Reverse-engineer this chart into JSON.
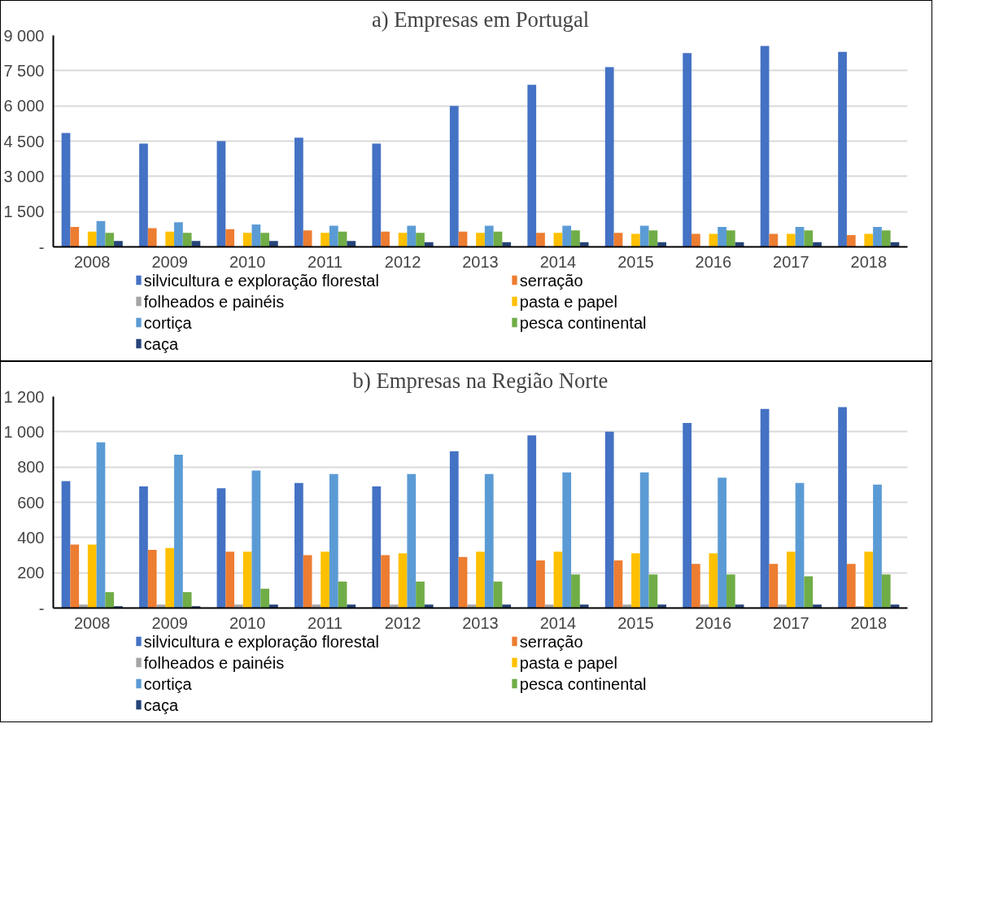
{
  "chart_data": [
    {
      "type": "bar",
      "title": "a) Empresas em Portugal",
      "categories": [
        "2008",
        "2009",
        "2010",
        "2011",
        "2012",
        "2013",
        "2014",
        "2015",
        "2016",
        "2017",
        "2018"
      ],
      "series": [
        {
          "name": "silvicultura e exploração florestal",
          "color": "#4472c4",
          "values": [
            4850,
            4400,
            4500,
            4650,
            4400,
            6000,
            6900,
            7650,
            8250,
            8550,
            8300
          ]
        },
        {
          "name": "serração",
          "color": "#ed7d31",
          "values": [
            850,
            800,
            750,
            700,
            650,
            650,
            600,
            600,
            550,
            550,
            500
          ]
        },
        {
          "name": " folheados e painéis",
          "color": "#a5a5a5",
          "values": [
            0,
            0,
            0,
            0,
            0,
            0,
            0,
            0,
            0,
            0,
            0
          ]
        },
        {
          "name": "pasta e papel",
          "color": "#ffc000",
          "values": [
            650,
            650,
            600,
            600,
            600,
            600,
            600,
            550,
            550,
            550,
            550
          ]
        },
        {
          "name": "cortiça",
          "color": "#5b9bd5",
          "values": [
            1100,
            1050,
            950,
            900,
            900,
            900,
            900,
            900,
            850,
            850,
            850
          ]
        },
        {
          "name": "pesca continental",
          "color": "#70ad47",
          "values": [
            600,
            600,
            600,
            650,
            600,
            650,
            700,
            700,
            700,
            700,
            700
          ]
        },
        {
          "name": "caça",
          "color": "#264478",
          "values": [
            250,
            250,
            250,
            250,
            200,
            200,
            200,
            200,
            200,
            200,
            200
          ]
        }
      ],
      "ylim": [
        0,
        9000
      ],
      "yticks": [
        {
          "value": 0,
          "label": "-"
        },
        {
          "value": 1500,
          "label": "1 500"
        },
        {
          "value": 3000,
          "label": "3 000"
        },
        {
          "value": 4500,
          "label": "4 500"
        },
        {
          "value": 6000,
          "label": "6 000"
        },
        {
          "value": 7500,
          "label": "7 500"
        },
        {
          "value": 9000,
          "label": "9 000"
        }
      ],
      "grid": "y",
      "legend": "bottom"
    },
    {
      "type": "bar",
      "title": "b) Empresas na Região Norte",
      "categories": [
        "2008",
        "2009",
        "2010",
        "2011",
        "2012",
        "2013",
        "2014",
        "2015",
        "2016",
        "2017",
        "2018"
      ],
      "series": [
        {
          "name": "silvicultura e exploração florestal",
          "color": "#4472c4",
          "values": [
            720,
            690,
            680,
            710,
            690,
            890,
            980,
            1000,
            1050,
            1130,
            1140
          ]
        },
        {
          "name": "serração",
          "color": "#ed7d31",
          "values": [
            360,
            330,
            320,
            300,
            300,
            290,
            270,
            270,
            250,
            250,
            250
          ]
        },
        {
          "name": " folheados e painéis",
          "color": "#a5a5a5",
          "values": [
            20,
            20,
            20,
            20,
            20,
            20,
            20,
            20,
            20,
            20,
            10
          ]
        },
        {
          "name": "pasta e papel",
          "color": "#ffc000",
          "values": [
            360,
            340,
            320,
            320,
            310,
            320,
            320,
            310,
            310,
            320,
            320
          ]
        },
        {
          "name": "cortiça",
          "color": "#5b9bd5",
          "values": [
            940,
            870,
            780,
            760,
            760,
            760,
            770,
            770,
            740,
            710,
            700
          ]
        },
        {
          "name": "pesca continental",
          "color": "#70ad47",
          "values": [
            90,
            90,
            110,
            150,
            150,
            150,
            190,
            190,
            190,
            180,
            190
          ]
        },
        {
          "name": "caça",
          "color": "#264478",
          "values": [
            10,
            10,
            20,
            20,
            20,
            20,
            20,
            20,
            20,
            20,
            20
          ]
        }
      ],
      "ylim": [
        0,
        1200
      ],
      "yticks": [
        {
          "value": 0,
          "label": "-"
        },
        {
          "value": 200,
          "label": "200"
        },
        {
          "value": 400,
          "label": "400"
        },
        {
          "value": 600,
          "label": "600"
        },
        {
          "value": 800,
          "label": "800"
        },
        {
          "value": 1000,
          "label": "1 000"
        },
        {
          "value": 1200,
          "label": "1 200"
        }
      ],
      "grid": "y",
      "legend": "bottom"
    }
  ]
}
